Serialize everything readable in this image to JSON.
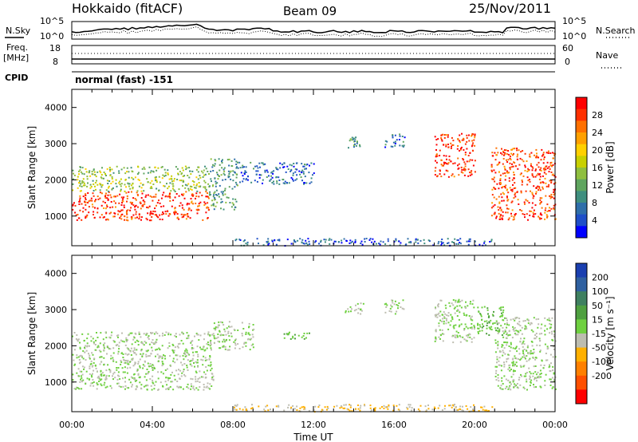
{
  "header": {
    "station": "Hokkaido (fitACF)",
    "beam": "Beam 09",
    "date": "25/Nov/2011"
  },
  "noise_panel": {
    "left_label": "N.Sky",
    "right_label": "N.Search",
    "left_ticks": [
      "10^5",
      "10^0"
    ],
    "right_ticks": [
      "10^5",
      "10^0"
    ]
  },
  "freq_panel": {
    "left_label_1": "Freq.",
    "left_label_2": "[MHz]",
    "right_label": "Nave",
    "left_ticks": [
      "18",
      "8"
    ],
    "right_ticks": [
      "60",
      "0"
    ]
  },
  "cpid": {
    "label": "CPID",
    "text": "normal (fast) -151"
  },
  "axes": {
    "ylabel": "Slant Range [km]",
    "y_ticks": [
      "1000",
      "2000",
      "3000",
      "4000"
    ],
    "x_ticks": [
      "00:00",
      "04:00",
      "08:00",
      "12:00",
      "16:00",
      "20:00",
      "00:00"
    ],
    "xlabel": "Time UT"
  },
  "power_scale": {
    "label": "Power [dB]",
    "ticks": [
      "4",
      "8",
      "12",
      "16",
      "20",
      "24",
      "28"
    ],
    "colors": [
      "#0000ff",
      "#1f4fc8",
      "#2f6faa",
      "#3f8f7f",
      "#5fa55f",
      "#8fbf3f",
      "#c8d000",
      "#ffd000",
      "#ffa000",
      "#ff7000",
      "#ff3000",
      "#ff0000"
    ]
  },
  "velocity_scale": {
    "label": "Velocity [m s⁻¹]",
    "ticks": [
      "200",
      "100",
      "50",
      "15",
      "-15",
      "-50",
      "-100",
      "-200"
    ],
    "colors": [
      "#1a3fb0",
      "#2f60a0",
      "#3f8060",
      "#4fa040",
      "#6fd040",
      "#bdbdb0",
      "#ffb000",
      "#ff8000",
      "#ff5000",
      "#ff0000"
    ]
  },
  "chart_data": {
    "type": "heatmap",
    "title": "Hokkaido (fitACF) Beam 09 25/Nov/2011",
    "xlabel": "Time UT",
    "ylabel": "Slant Range [km]",
    "x_unit": "hours UT",
    "xlim": [
      0,
      24
    ],
    "ylim": [
      180,
      4500
    ],
    "panels": [
      {
        "name": "Power",
        "unit": "dB",
        "clim": [
          0,
          30
        ],
        "regions": [
          {
            "t": [
              0,
              6.8
            ],
            "r": [
              900,
              1700
            ],
            "value": 27
          },
          {
            "t": [
              0,
              6.8
            ],
            "r": [
              1700,
              2400
            ],
            "value": 14
          },
          {
            "t": [
              6.8,
              8.2
            ],
            "r": [
              1200,
              2600
            ],
            "value": 10
          },
          {
            "t": [
              8.2,
              12.0
            ],
            "r": [
              1900,
              2500
            ],
            "value": 6
          },
          {
            "t": [
              13.7,
              14.3
            ],
            "r": [
              2900,
              3200
            ],
            "value": 10
          },
          {
            "t": [
              15.5,
              16.5
            ],
            "r": [
              2900,
              3300
            ],
            "value": 6
          },
          {
            "t": [
              18.0,
              20.0
            ],
            "r": [
              2100,
              3300
            ],
            "value": 27
          },
          {
            "t": [
              20.8,
              24.0
            ],
            "r": [
              900,
              2900
            ],
            "value": 26
          },
          {
            "t": [
              8.0,
              21.0
            ],
            "r": [
              200,
              400
            ],
            "value": 5
          }
        ]
      },
      {
        "name": "Velocity",
        "unit": "m s^-1",
        "clim": [
          -200,
          200
        ],
        "regions": [
          {
            "t": [
              0,
              7.0
            ],
            "r": [
              800,
              2400
            ],
            "value": 0
          },
          {
            "t": [
              7.0,
              9.0
            ],
            "r": [
              1900,
              2700
            ],
            "value": 0
          },
          {
            "t": [
              10.5,
              11.8
            ],
            "r": [
              2200,
              2400
            ],
            "value": 30
          },
          {
            "t": [
              13.5,
              14.5
            ],
            "r": [
              2900,
              3200
            ],
            "value": 0
          },
          {
            "t": [
              15.5,
              16.5
            ],
            "r": [
              2900,
              3300
            ],
            "value": 0
          },
          {
            "t": [
              18.0,
              20.0
            ],
            "r": [
              2100,
              3300
            ],
            "value": 0
          },
          {
            "t": [
              20.0,
              21.5
            ],
            "r": [
              2300,
              3100
            ],
            "value": 30
          },
          {
            "t": [
              21.0,
              24.0
            ],
            "r": [
              800,
              2800
            ],
            "value": 0
          },
          {
            "t": [
              8.0,
              21.0
            ],
            "r": [
              200,
              400
            ],
            "value": -40
          }
        ]
      }
    ]
  }
}
